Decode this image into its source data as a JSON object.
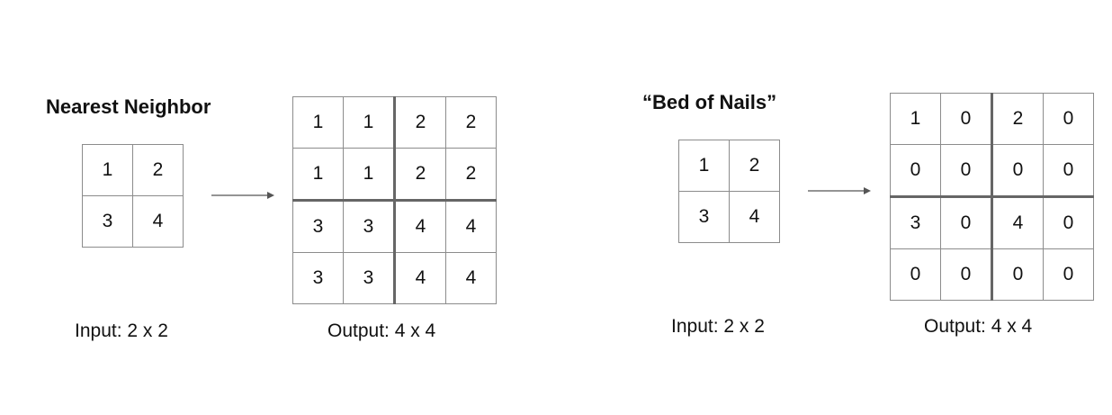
{
  "left": {
    "title": "Nearest Neighbor",
    "input_caption": "Input: 2 x 2",
    "output_caption": "Output: 4 x 4",
    "input_grid": [
      [
        "1",
        "2"
      ],
      [
        "3",
        "4"
      ]
    ],
    "output_grid": [
      [
        "1",
        "1",
        "2",
        "2"
      ],
      [
        "1",
        "1",
        "2",
        "2"
      ],
      [
        "3",
        "3",
        "4",
        "4"
      ],
      [
        "3",
        "3",
        "4",
        "4"
      ]
    ]
  },
  "right": {
    "title": "“Bed of Nails”",
    "input_caption": "Input: 2 x 2",
    "output_caption": "Output: 4 x 4",
    "input_grid": [
      [
        "1",
        "2"
      ],
      [
        "3",
        "4"
      ]
    ],
    "output_grid": [
      [
        "1",
        "0",
        "2",
        "0"
      ],
      [
        "0",
        "0",
        "0",
        "0"
      ],
      [
        "3",
        "0",
        "4",
        "0"
      ],
      [
        "0",
        "0",
        "0",
        "0"
      ]
    ]
  },
  "colors": {
    "grid_line": "#8c8c8c",
    "divider": "#666666",
    "arrow": "#555555"
  }
}
